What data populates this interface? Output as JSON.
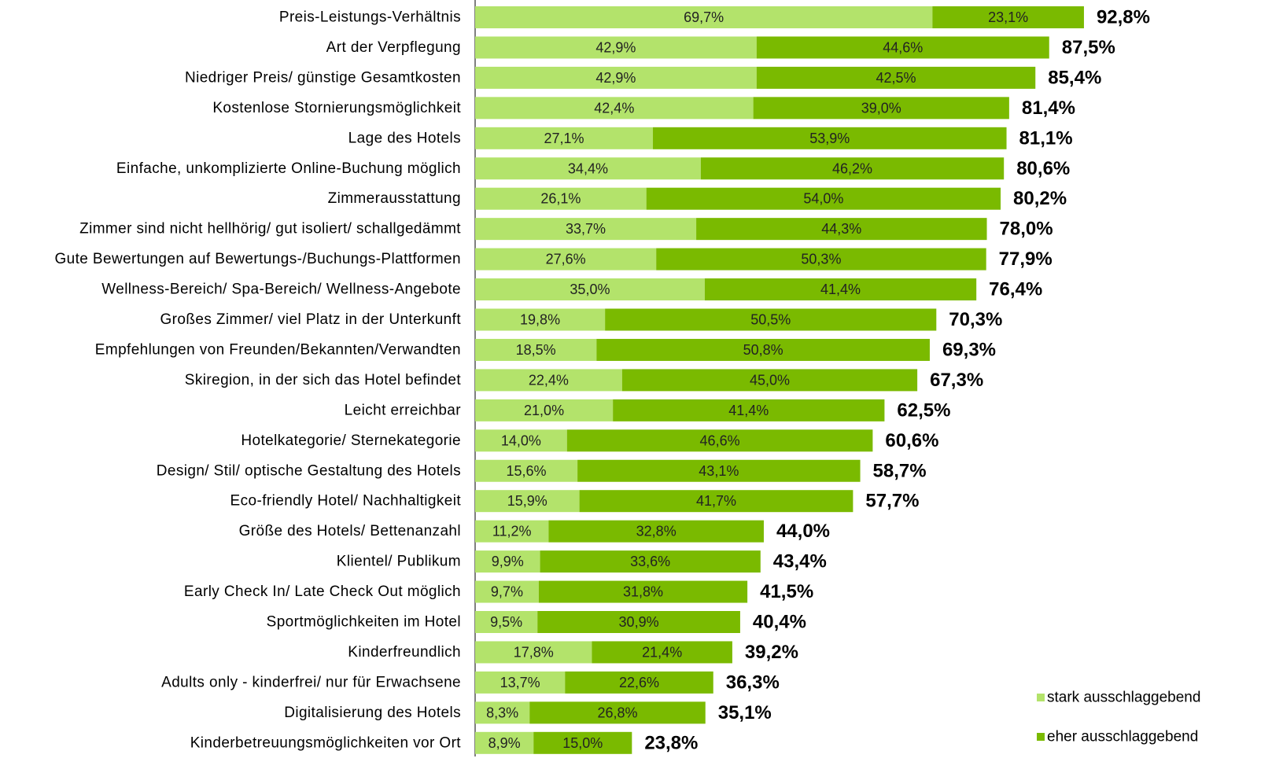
{
  "chart_data": {
    "type": "stacked_bar_horizontal",
    "categories": [
      "Preis-Leistungs-Verhältnis",
      "Art der Verpflegung",
      "Niedriger Preis/ günstige Gesamtkosten",
      "Kostenlose Stornierungsmöglichkeit",
      "Lage des Hotels",
      "Einfache, unkomplizierte Online-Buchung möglich",
      "Zimmerausstattung",
      "Zimmer sind nicht hellhörig/ gut isoliert/ schallgedämmt",
      "Gute Bewertungen auf Bewertungs-/Buchungs-Plattformen",
      "Wellness-Bereich/ Spa-Bereich/ Wellness-Angebote",
      "Großes Zimmer/ viel Platz in der Unterkunft",
      "Empfehlungen von Freunden/Bekannten/Verwandten",
      "Skiregion, in der sich das Hotel befindet",
      "Leicht erreichbar",
      "Hotelkategorie/ Sternekategorie",
      "Design/ Stil/ optische Gestaltung des Hotels",
      "Eco-friendly Hotel/ Nachhaltigkeit",
      "Größe des Hotels/ Bettenanzahl",
      "Klientel/ Publikum",
      "Early Check In/ Late Check Out möglich",
      "Sportmöglichkeiten im Hotel",
      "Kinderfreundlich",
      "Adults only - kinderfrei/ nur für Erwachsene",
      "Digitalisierung des Hotels",
      "Kinderbetreuungsmöglichkeiten vor Ort"
    ],
    "series": [
      {
        "name": "stark ausschlaggebend",
        "color": "#b3e36b",
        "values": [
          69.7,
          42.9,
          42.9,
          42.4,
          27.1,
          34.4,
          26.1,
          33.7,
          27.6,
          35.0,
          19.8,
          18.5,
          22.4,
          21.0,
          14.0,
          15.6,
          15.9,
          11.2,
          9.9,
          9.7,
          9.5,
          17.8,
          13.7,
          8.3,
          8.9
        ],
        "value_labels": [
          "69,7%",
          "42,9%",
          "42,9%",
          "42,4%",
          "27,1%",
          "34,4%",
          "26,1%",
          "33,7%",
          "27,6%",
          "35,0%",
          "19,8%",
          "18,5%",
          "22,4%",
          "21,0%",
          "14,0%",
          "15,6%",
          "15,9%",
          "11,2%",
          "9,9%",
          "9,7%",
          "9,5%",
          "17,8%",
          "13,7%",
          "8,3%",
          "8,9%"
        ]
      },
      {
        "name": "eher ausschlaggebend",
        "color": "#7aba00",
        "values": [
          23.1,
          44.6,
          42.5,
          39.0,
          53.9,
          46.2,
          54.0,
          44.3,
          50.3,
          41.4,
          50.5,
          50.8,
          45.0,
          41.4,
          46.6,
          43.1,
          41.7,
          32.8,
          33.6,
          31.8,
          30.9,
          21.4,
          22.6,
          26.8,
          15.0
        ],
        "value_labels": [
          "23,1%",
          "44,6%",
          "42,5%",
          "39,0%",
          "53,9%",
          "46,2%",
          "54,0%",
          "44,3%",
          "50,3%",
          "41,4%",
          "50,5%",
          "50,8%",
          "45,0%",
          "41,4%",
          "46,6%",
          "43,1%",
          "41,7%",
          "32,8%",
          "33,6%",
          "31,8%",
          "30,9%",
          "21,4%",
          "22,6%",
          "26,8%",
          "15,0%"
        ]
      }
    ],
    "totals": [
      92.8,
      87.5,
      85.4,
      81.4,
      81.1,
      80.6,
      80.2,
      78.0,
      77.9,
      76.4,
      70.3,
      69.3,
      67.3,
      62.5,
      60.6,
      58.7,
      57.7,
      44.0,
      43.4,
      41.5,
      40.4,
      39.2,
      36.3,
      35.1,
      23.8
    ],
    "total_labels": [
      "92,8%",
      "87,5%",
      "85,4%",
      "81,4%",
      "81,1%",
      "80,6%",
      "80,2%",
      "78,0%",
      "77,9%",
      "76,4%",
      "70,3%",
      "69,3%",
      "67,3%",
      "62,5%",
      "60,6%",
      "58,7%",
      "57,7%",
      "44,0%",
      "43,4%",
      "41,5%",
      "40,4%",
      "39,2%",
      "36,3%",
      "35,1%",
      "23,8%"
    ],
    "xlim": [
      0,
      100
    ],
    "legend": "bottom-right"
  }
}
